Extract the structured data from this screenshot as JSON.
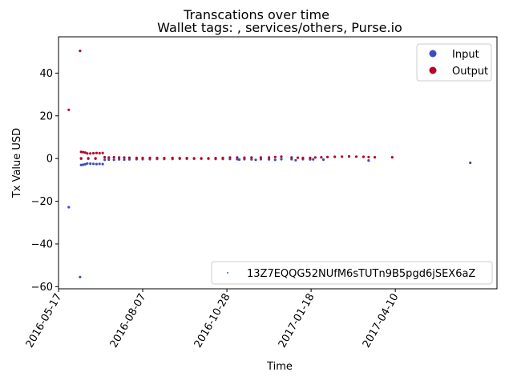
{
  "chart_data": {
    "type": "scatter",
    "title": "Transcations over time",
    "subtitle": "Wallet tags: , services/others, Purse.io",
    "xlabel": "Time",
    "ylabel": "Tx Value USD",
    "xlim": [
      "2016-05-17",
      "2017-07-18"
    ],
    "ylim": [
      -61,
      57
    ],
    "x_ticks": [
      "2016-05-17",
      "2016-08-07",
      "2016-10-28",
      "2017-01-18",
      "2017-04-10"
    ],
    "y_ticks": [
      -60,
      -40,
      -20,
      0,
      20,
      40
    ],
    "grid": false,
    "legends": [
      {
        "placement": "top-right",
        "entries": [
          {
            "label": "Input",
            "color": "#3b4cc0"
          },
          {
            "label": "Output",
            "color": "#b40426"
          }
        ]
      },
      {
        "placement": "bottom-right",
        "entries": [
          {
            "label": "13Z7EQQG52NUfM6sTUTn9B5pgd6jSEX6aZ",
            "color": "#1f77b4"
          }
        ]
      }
    ],
    "series": [
      {
        "name": "Input",
        "color": "#3b4cc0",
        "points": [
          [
            "2016-05-27",
            -22.8
          ],
          [
            "2016-06-07",
            -55.5
          ],
          [
            "2016-06-08",
            -3.0
          ],
          [
            "2016-06-10",
            -2.9
          ],
          [
            "2016-06-12",
            -2.7
          ],
          [
            "2016-06-14",
            -2.3
          ],
          [
            "2016-06-17",
            -2.4
          ],
          [
            "2016-06-20",
            -2.5
          ],
          [
            "2016-06-23",
            -2.6
          ],
          [
            "2016-06-26",
            -2.5
          ],
          [
            "2016-06-29",
            -2.6
          ],
          [
            "2016-06-08",
            -0.1
          ],
          [
            "2016-06-15",
            -0.1
          ],
          [
            "2016-06-22",
            -0.1
          ],
          [
            "2016-07-01",
            -0.6
          ],
          [
            "2016-07-05",
            -0.5
          ],
          [
            "2016-07-10",
            -0.6
          ],
          [
            "2016-07-15",
            -0.4
          ],
          [
            "2016-07-20",
            -0.5
          ],
          [
            "2016-07-25",
            -0.4
          ],
          [
            "2016-08-01",
            -0.3
          ],
          [
            "2016-08-07",
            -0.3
          ],
          [
            "2016-08-14",
            -0.3
          ],
          [
            "2016-08-21",
            -0.2
          ],
          [
            "2016-08-28",
            -0.2
          ],
          [
            "2016-09-05",
            -0.2
          ],
          [
            "2016-09-12",
            -0.1
          ],
          [
            "2016-09-19",
            -0.1
          ],
          [
            "2016-09-26",
            -0.1
          ],
          [
            "2016-10-03",
            -0.1
          ],
          [
            "2016-10-10",
            -0.1
          ],
          [
            "2016-10-17",
            -0.2
          ],
          [
            "2016-10-24",
            -0.2
          ],
          [
            "2016-10-31",
            -0.2
          ],
          [
            "2016-11-07",
            -0.3
          ],
          [
            "2016-11-09",
            -0.5
          ],
          [
            "2016-11-14",
            -0.3
          ],
          [
            "2016-11-21",
            -0.4
          ],
          [
            "2016-11-25",
            -0.6
          ],
          [
            "2016-11-30",
            -0.3
          ],
          [
            "2016-12-08",
            -0.4
          ],
          [
            "2016-12-14",
            -0.6
          ],
          [
            "2016-12-20",
            -0.3
          ],
          [
            "2016-12-30",
            -0.3
          ],
          [
            "2017-01-03",
            -0.8
          ],
          [
            "2017-01-10",
            -0.3
          ],
          [
            "2017-01-17",
            -0.4
          ],
          [
            "2017-01-20",
            -0.4
          ],
          [
            "2017-01-30",
            -0.5
          ],
          [
            "2017-03-15",
            -0.9
          ],
          [
            "2017-06-22",
            -2.0
          ]
        ]
      },
      {
        "name": "Output",
        "color": "#b40426",
        "points": [
          [
            "2016-05-27",
            22.8
          ],
          [
            "2016-06-07",
            50.4
          ],
          [
            "2016-06-08",
            3.1
          ],
          [
            "2016-06-10",
            3.0
          ],
          [
            "2016-06-12",
            2.8
          ],
          [
            "2016-06-14",
            2.4
          ],
          [
            "2016-06-17",
            2.4
          ],
          [
            "2016-06-20",
            2.5
          ],
          [
            "2016-06-23",
            2.6
          ],
          [
            "2016-06-26",
            2.5
          ],
          [
            "2016-06-29",
            2.6
          ],
          [
            "2016-06-08",
            0.1
          ],
          [
            "2016-06-15",
            0.1
          ],
          [
            "2016-06-22",
            0.1
          ],
          [
            "2016-07-01",
            0.6
          ],
          [
            "2016-07-05",
            0.5
          ],
          [
            "2016-07-10",
            0.6
          ],
          [
            "2016-07-15",
            0.5
          ],
          [
            "2016-07-20",
            0.5
          ],
          [
            "2016-07-25",
            0.4
          ],
          [
            "2016-08-01",
            0.3
          ],
          [
            "2016-08-07",
            0.3
          ],
          [
            "2016-08-14",
            0.3
          ],
          [
            "2016-08-21",
            0.3
          ],
          [
            "2016-08-28",
            0.2
          ],
          [
            "2016-09-05",
            0.3
          ],
          [
            "2016-09-12",
            0.2
          ],
          [
            "2016-09-19",
            0.2
          ],
          [
            "2016-09-26",
            0.1
          ],
          [
            "2016-10-03",
            0.1
          ],
          [
            "2016-10-10",
            0.1
          ],
          [
            "2016-10-17",
            0.2
          ],
          [
            "2016-10-24",
            0.3
          ],
          [
            "2016-10-31",
            0.5
          ],
          [
            "2016-11-07",
            0.5
          ],
          [
            "2016-11-14",
            0.4
          ],
          [
            "2016-11-21",
            0.5
          ],
          [
            "2016-11-30",
            0.5
          ],
          [
            "2016-12-08",
            0.5
          ],
          [
            "2016-12-14",
            0.7
          ],
          [
            "2016-12-20",
            0.9
          ],
          [
            "2016-12-30",
            0.5
          ],
          [
            "2017-01-05",
            0.4
          ],
          [
            "2017-01-10",
            0.3
          ],
          [
            "2017-01-17",
            0.3
          ],
          [
            "2017-01-22",
            0.5
          ],
          [
            "2017-01-28",
            0.6
          ],
          [
            "2017-02-03",
            0.7
          ],
          [
            "2017-02-10",
            0.8
          ],
          [
            "2017-02-17",
            0.9
          ],
          [
            "2017-02-24",
            1.0
          ],
          [
            "2017-03-03",
            0.9
          ],
          [
            "2017-03-10",
            0.8
          ],
          [
            "2017-03-15",
            0.7
          ],
          [
            "2017-03-21",
            0.6
          ],
          [
            "2017-04-07",
            0.6
          ]
        ]
      }
    ]
  }
}
